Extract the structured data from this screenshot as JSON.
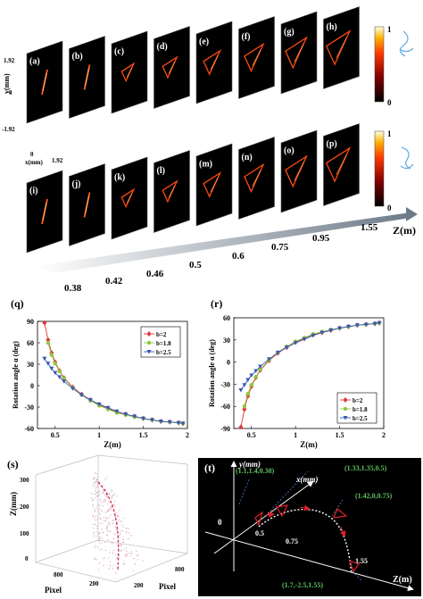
{
  "top": {
    "panels_row1": [
      "(a)",
      "(b)",
      "(c)",
      "(d)",
      "(e)",
      "(f)",
      "(g)",
      "(h)"
    ],
    "panels_row2": [
      "(i)",
      "(j)",
      "(k)",
      "(l)",
      "(m)",
      "(n)",
      "(o)",
      "(p)"
    ],
    "axis_y_label": "y(mm)",
    "axis_x_label": "x(mm)",
    "axis_y_ticks": [
      "1.92",
      "0",
      "-1.92"
    ],
    "axis_x_ticks": [
      "0",
      "1.92"
    ],
    "colorbar_max": "1",
    "colorbar_min": "0",
    "z_axis_label": "Z(m)",
    "z_ticks": [
      "0.38",
      "0.42",
      "0.46",
      "0.5",
      "0.6",
      "0.75",
      "0.95",
      "1.55"
    ]
  },
  "q": {
    "tag": "(q)",
    "chart_data": {
      "type": "line",
      "xlabel": "Z(m)",
      "ylabel": "Rotation angle α (deg)",
      "xlim": [
        0.3,
        2
      ],
      "ylim": [
        -60,
        90
      ],
      "xticks": [
        "0.5",
        "1",
        "1.5",
        "2"
      ],
      "yticks": [
        "90",
        "60",
        "30",
        "0",
        "-30",
        "-60"
      ],
      "legend": "top-right",
      "series": [
        {
          "name": "b=2",
          "color": "#e3343c",
          "marker": "diamond",
          "x": [
            0.38,
            0.42,
            0.46,
            0.5,
            0.55,
            0.6,
            0.7,
            0.8,
            0.9,
            1.0,
            1.1,
            1.2,
            1.3,
            1.4,
            1.5,
            1.6,
            1.7,
            1.8,
            1.9,
            1.95
          ],
          "y": [
            88,
            64,
            46,
            33,
            21,
            11,
            -2,
            -12,
            -20,
            -27,
            -32,
            -37,
            -40,
            -43,
            -46,
            -48,
            -50,
            -51,
            -52,
            -53
          ]
        },
        {
          "name": "b=1.8",
          "color": "#8dc63f",
          "marker": "circle",
          "x": [
            0.42,
            0.46,
            0.5,
            0.55,
            0.6,
            0.7,
            0.8,
            0.9,
            1.0,
            1.1,
            1.2,
            1.3,
            1.4,
            1.5,
            1.6,
            1.7,
            1.8,
            1.9,
            1.95
          ],
          "y": [
            60,
            43,
            31,
            20,
            10,
            -3,
            -13,
            -21,
            -28,
            -33,
            -38,
            -41,
            -44,
            -46,
            -48,
            -50,
            -51,
            -52,
            -53
          ]
        },
        {
          "name": "b=2.5",
          "color": "#3a57b4",
          "marker": "triangle",
          "x": [
            0.38,
            0.42,
            0.46,
            0.5,
            0.55,
            0.6,
            0.7,
            0.8,
            0.9,
            1.0,
            1.1,
            1.2,
            1.3,
            1.4,
            1.5,
            1.6,
            1.7,
            1.8,
            1.9,
            1.95
          ],
          "y": [
            38,
            31,
            24,
            18,
            12,
            6,
            -4,
            -13,
            -20,
            -26,
            -31,
            -36,
            -40,
            -43,
            -46,
            -48,
            -50,
            -51,
            -52,
            -53
          ]
        }
      ]
    }
  },
  "r": {
    "tag": "(r)",
    "chart_data": {
      "type": "line",
      "xlabel": "Z(m)",
      "ylabel": "Rotation angle α (deg)",
      "xlim": [
        0.3,
        2
      ],
      "ylim": [
        -90,
        60
      ],
      "xticks": [
        "0.5",
        "1",
        "1.5",
        "2"
      ],
      "yticks": [
        "60",
        "30",
        "0",
        "-30",
        "-60",
        "-90"
      ],
      "legend": "bottom-right",
      "series": [
        {
          "name": "b=2",
          "color": "#e3343c",
          "marker": "diamond",
          "x": [
            0.38,
            0.42,
            0.46,
            0.5,
            0.55,
            0.6,
            0.7,
            0.8,
            0.9,
            1.0,
            1.1,
            1.2,
            1.3,
            1.4,
            1.5,
            1.6,
            1.7,
            1.8,
            1.9,
            1.95
          ],
          "y": [
            -88,
            -64,
            -46,
            -33,
            -21,
            -11,
            2,
            12,
            20,
            27,
            32,
            37,
            40,
            43,
            46,
            48,
            50,
            51,
            52,
            53
          ]
        },
        {
          "name": "b=1.8",
          "color": "#8dc63f",
          "marker": "circle",
          "x": [
            0.42,
            0.46,
            0.5,
            0.55,
            0.6,
            0.7,
            0.8,
            0.9,
            1.0,
            1.1,
            1.2,
            1.3,
            1.4,
            1.5,
            1.6,
            1.7,
            1.8,
            1.9,
            1.95
          ],
          "y": [
            -60,
            -43,
            -31,
            -20,
            -10,
            3,
            13,
            21,
            28,
            33,
            38,
            41,
            44,
            46,
            48,
            50,
            51,
            52,
            53
          ]
        },
        {
          "name": "b=2.5",
          "color": "#3a57b4",
          "marker": "triangle",
          "x": [
            0.38,
            0.42,
            0.46,
            0.5,
            0.55,
            0.6,
            0.7,
            0.8,
            0.9,
            1.0,
            1.1,
            1.2,
            1.3,
            1.4,
            1.5,
            1.6,
            1.7,
            1.8,
            1.9,
            1.95
          ],
          "y": [
            -38,
            -31,
            -24,
            -18,
            -12,
            -6,
            4,
            13,
            20,
            26,
            31,
            36,
            40,
            43,
            46,
            48,
            50,
            51,
            52,
            53
          ]
        }
      ]
    }
  },
  "s": {
    "tag": "(s)",
    "zlabel": "Z(mm)",
    "zticks": [
      "300",
      "200",
      "100",
      "0"
    ],
    "pixel_label_left": "Pixel",
    "pixel_label_right": "Pixel",
    "ticks_left": [
      "800",
      "200"
    ],
    "ticks_right": [
      "200",
      "800"
    ]
  },
  "t": {
    "tag": "(t)",
    "ylabel": "y(mm)",
    "xlabel": "x(mm)",
    "zlabel": "Z(m)",
    "origin": "0",
    "ticks": [
      "0.5",
      "0.75",
      "1.55"
    ],
    "annotations": [
      "(1.1,1.4,0.38)",
      "(1.33,1.35,0.5)",
      "(1.42,0,0.75)",
      "(1.7,-2.5,1.55)"
    ]
  }
}
